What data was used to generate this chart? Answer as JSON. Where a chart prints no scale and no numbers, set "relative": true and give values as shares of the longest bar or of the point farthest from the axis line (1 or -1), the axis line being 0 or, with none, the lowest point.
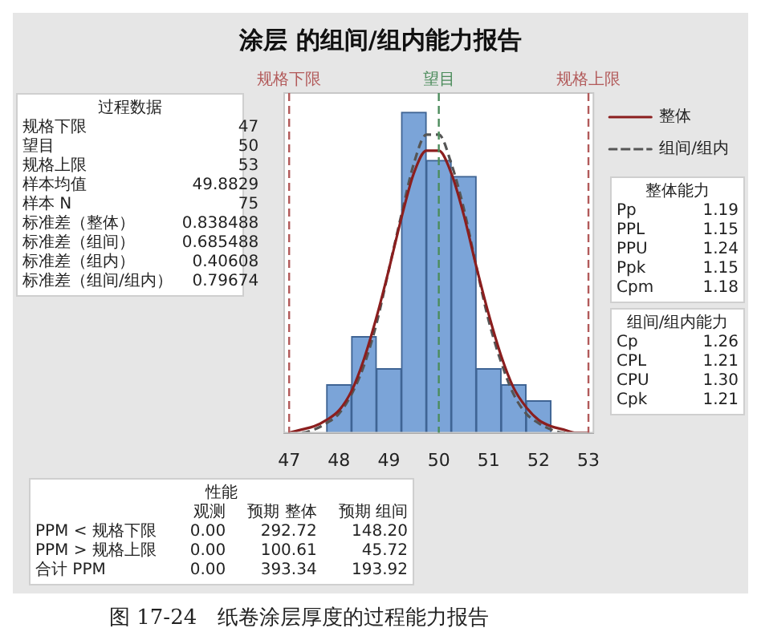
{
  "chart_data": [
    {
      "type": "histogram",
      "title": "涂层 的组间/组内能力报告",
      "bins": [
        47.75,
        48.25,
        48.75,
        49.25,
        49.75,
        50.25,
        50.75,
        51.25,
        51.75,
        52.25
      ],
      "values": [
        0.15,
        0.3,
        0.2,
        1,
        0.85,
        0.8,
        0.2,
        0.15,
        0.1
      ],
      "color": "#7ba4d8",
      "relative": true,
      "xlim": [
        46.9,
        53.1
      ],
      "xticks": [
        47,
        48,
        49,
        50,
        51,
        52,
        53
      ],
      "grid": false,
      "legend": "top right",
      "marker": "none",
      "series": [
        {
          "name": "整体",
          "type": "line",
          "color": "#8b1e1e",
          "line_style": "solid",
          "x": [
            47,
            47.25,
            47.5,
            47.75,
            48,
            48.25,
            48.5,
            48.75,
            49,
            49.25,
            49.5,
            49.75,
            50,
            50.25,
            50.5,
            50.75,
            51,
            51.25,
            51.5,
            51.75,
            52,
            52.25,
            52.5,
            52.75,
            53
          ],
          "values": [
            0,
            0.01,
            0.02,
            0.04,
            0.07,
            0.13,
            0.23,
            0.36,
            0.51,
            0.67,
            0.81,
            0.88,
            0.88,
            0.81,
            0.68,
            0.52,
            0.37,
            0.24,
            0.14,
            0.08,
            0.04,
            0.02,
            0.01,
            0,
            0
          ]
        },
        {
          "name": "组间/组内",
          "type": "line",
          "color": "#555555",
          "line_style": "dashed",
          "x": [
            47,
            47.25,
            47.5,
            47.75,
            48,
            48.25,
            48.5,
            48.75,
            49,
            49.25,
            49.5,
            49.75,
            50,
            50.25,
            50.5,
            50.75,
            51,
            51.25,
            51.5,
            51.75,
            52,
            52.25,
            52.5,
            52.75,
            53
          ],
          "values": [
            0,
            0,
            0.01,
            0.03,
            0.06,
            0.12,
            0.21,
            0.34,
            0.51,
            0.68,
            0.84,
            0.93,
            0.93,
            0.84,
            0.7,
            0.52,
            0.35,
            0.22,
            0.12,
            0.06,
            0.03,
            0.01,
            0,
            0,
            0
          ]
        }
      ],
      "ref_lines": [
        {
          "axis": "x",
          "value": 47,
          "label": "规格下限",
          "color": "#b25a5a",
          "line_style": "dashed"
        },
        {
          "axis": "x",
          "value": 50,
          "label": "望目",
          "color": "#4c8c5c",
          "line_style": "dashed"
        },
        {
          "axis": "x",
          "value": 53,
          "label": "规格上限",
          "color": "#b25a5a",
          "line_style": "dashed"
        }
      ],
      "annotations": [
        "图 17-24　纸卷涂层厚度的过程能力报告"
      ]
    },
    {
      "type": "other",
      "title": "过程数据",
      "annotations": [
        "规格下限",
        "47",
        "望目",
        "50",
        "规格上限",
        "53",
        "样本均值",
        "49.8829",
        "样本 N",
        "75",
        "标准差（整体）",
        "0.838488",
        "标准差（组间）",
        "0.685488",
        "标准差（组内）",
        "0.40608",
        "标准差（组间/组内）",
        "0.79674"
      ]
    },
    {
      "type": "other",
      "title": "整体能力",
      "annotations": [
        "Pp",
        "1.19",
        "PPL",
        "1.15",
        "PPU",
        "1.24",
        "Ppk",
        "1.15",
        "Cpm",
        "1.18"
      ]
    },
    {
      "type": "other",
      "title": "组间/组内能力",
      "annotations": [
        "Cp",
        "1.26",
        "CPL",
        "1.21",
        "CPU",
        "1.30",
        "Cpk",
        "1.21"
      ]
    },
    {
      "type": "other",
      "title": "性能",
      "annotations": [
        "观测",
        "预期 整体",
        "预期 组间",
        "PPM < 规格下限",
        "0.00",
        "292.72",
        "148.20",
        "PPM > 规格上限",
        "0.00",
        "100.61",
        "45.72",
        "合计 PPM",
        "0.00",
        "393.34",
        "193.92"
      ]
    }
  ]
}
